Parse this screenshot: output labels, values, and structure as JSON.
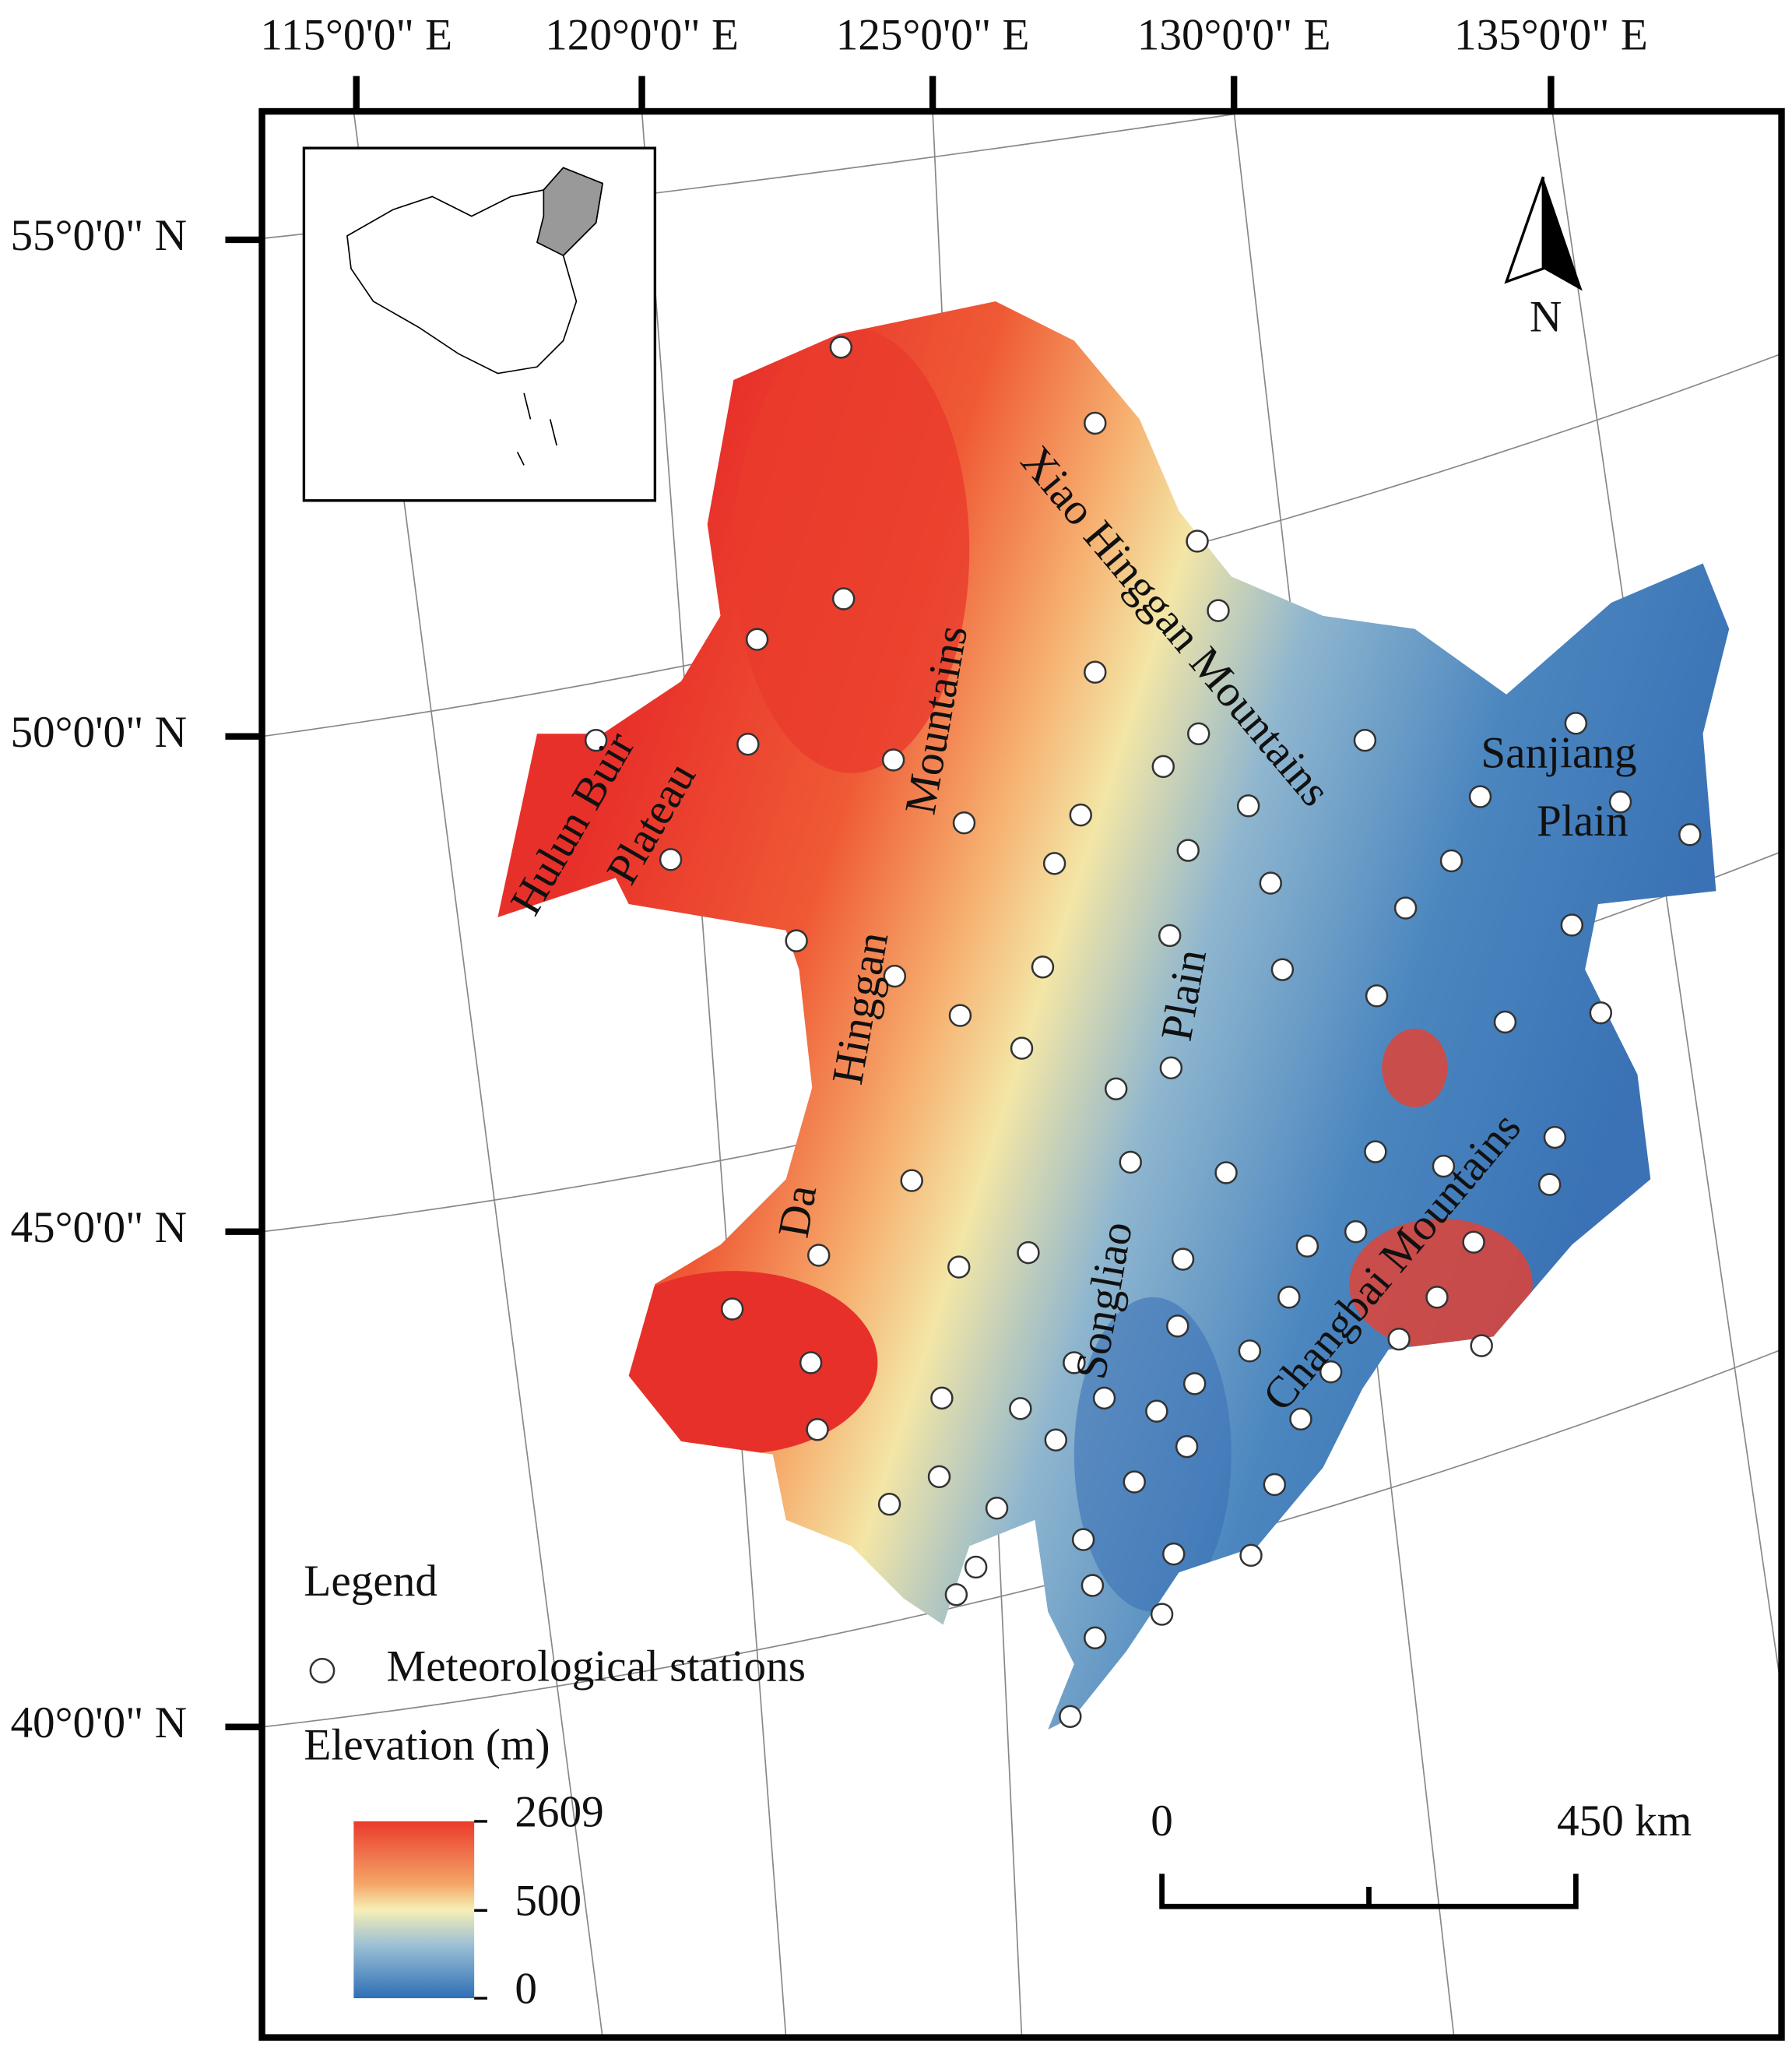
{
  "axes": {
    "longitude_labels": [
      "115°0'0\" E",
      "120°0'0\" E",
      "125°0'0\" E",
      "130°0'0\" E",
      "135°0'0\" E"
    ],
    "latitude_labels": [
      "55°0'0\" N",
      "50°0'0\" N",
      "45°0'0\" N",
      "40°0'0\" N"
    ]
  },
  "regions": [
    "Hulun Buir",
    "Plateau",
    "Da",
    "Hinggan",
    "Mountains",
    "Xiao Hinggan Mountains",
    "Sanjiang",
    "Plain",
    "Songliao",
    "Plain",
    "Changbai Mountains"
  ],
  "north_arrow": "N",
  "legend": {
    "title": "Legend",
    "station": "Meteorological stations",
    "elevation_title": "Elevation (m)",
    "elevation_ticks": [
      2609,
      500,
      0
    ]
  },
  "scale_bar": {
    "labels": [
      "0",
      "450 km"
    ]
  }
}
